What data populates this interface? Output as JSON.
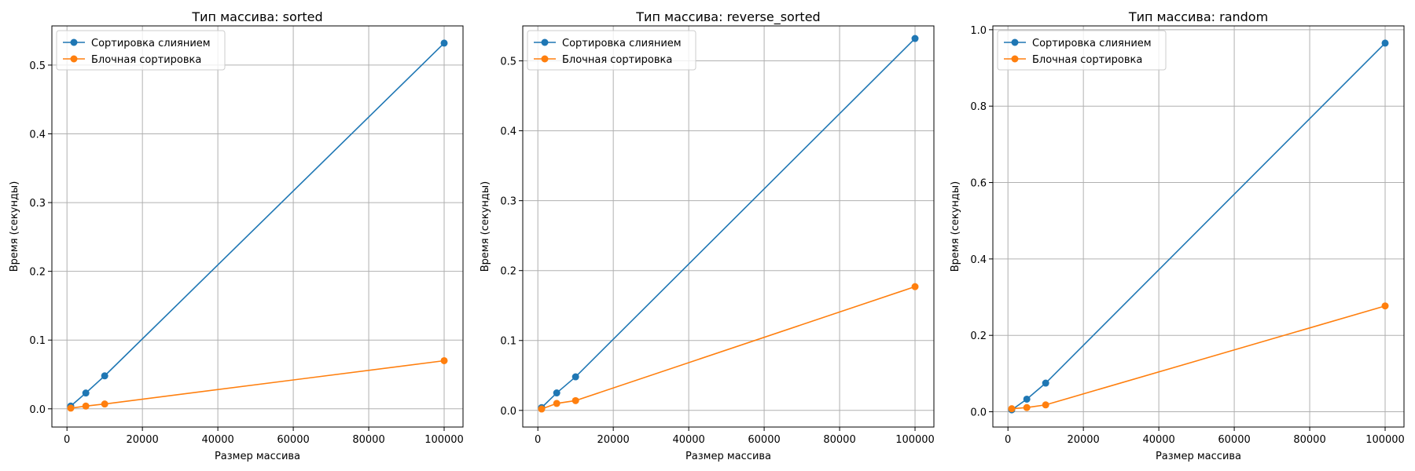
{
  "chart_data": [
    {
      "type": "line",
      "title": "Тип массива: sorted",
      "xlabel": "Размер массива",
      "ylabel": "Время (секунды)",
      "x": [
        1000,
        5000,
        10000,
        100000
      ],
      "xlim": [
        -4000,
        105000
      ],
      "ylim": [
        -0.0265,
        0.557
      ],
      "xticks": [
        0,
        20000,
        40000,
        60000,
        80000,
        100000
      ],
      "yticks": [
        0.0,
        0.1,
        0.2,
        0.3,
        0.4,
        0.5
      ],
      "ytick_labels": [
        "0.0",
        "0.1",
        "0.2",
        "0.3",
        "0.4",
        "0.5"
      ],
      "grid": true,
      "legend_position": "top-left",
      "series": [
        {
          "name": "Сортировка слиянием",
          "color": "#1f77b4",
          "values": [
            0.004,
            0.023,
            0.048,
            0.532
          ]
        },
        {
          "name": "Блочная сортировка",
          "color": "#ff7f0e",
          "values": [
            0.001,
            0.004,
            0.007,
            0.07
          ]
        }
      ]
    },
    {
      "type": "line",
      "title": "Тип массива: reverse_sorted",
      "xlabel": "Размер массива",
      "ylabel": "Время (секунды)",
      "x": [
        1000,
        5000,
        10000,
        100000
      ],
      "xlim": [
        -4000,
        105000
      ],
      "ylim": [
        -0.0238,
        0.55
      ],
      "xticks": [
        0,
        20000,
        40000,
        60000,
        80000,
        100000
      ],
      "yticks": [
        0.0,
        0.1,
        0.2,
        0.3,
        0.4,
        0.5
      ],
      "ytick_labels": [
        "0.0",
        "0.1",
        "0.2",
        "0.3",
        "0.4",
        "0.5"
      ],
      "grid": true,
      "legend_position": "top-left",
      "series": [
        {
          "name": "Сортировка слиянием",
          "color": "#1f77b4",
          "values": [
            0.004,
            0.025,
            0.048,
            0.532
          ]
        },
        {
          "name": "Блочная сортировка",
          "color": "#ff7f0e",
          "values": [
            0.002,
            0.01,
            0.014,
            0.177
          ]
        }
      ]
    },
    {
      "type": "line",
      "title": "Тип массива: random",
      "xlabel": "Размер массива",
      "ylabel": "Время (секунды)",
      "x": [
        1000,
        5000,
        10000,
        100000
      ],
      "xlim": [
        -4000,
        105000
      ],
      "ylim": [
        -0.04,
        1.01
      ],
      "xticks": [
        0,
        20000,
        40000,
        60000,
        80000,
        100000
      ],
      "yticks": [
        0.0,
        0.2,
        0.4,
        0.6,
        0.8,
        1.0
      ],
      "ytick_labels": [
        "0.0",
        "0.2",
        "0.4",
        "0.6",
        "0.8",
        "1.0"
      ],
      "grid": true,
      "legend_position": "top-left",
      "series": [
        {
          "name": "Сортировка слиянием",
          "color": "#1f77b4",
          "values": [
            0.005,
            0.033,
            0.075,
            0.965
          ]
        },
        {
          "name": "Блочная сортировка",
          "color": "#ff7f0e",
          "values": [
            0.008,
            0.011,
            0.018,
            0.277
          ]
        }
      ]
    }
  ]
}
